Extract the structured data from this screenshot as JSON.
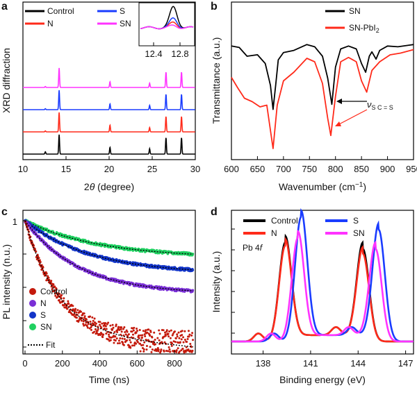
{
  "figure": {
    "panel_letters": [
      "a",
      "b",
      "c",
      "d"
    ]
  },
  "chart_data": [
    {
      "type": "line",
      "panel": "a",
      "xlabel_prefix": "2",
      "xlabel_symbol": "θ",
      "xlabel_suffix": " (degree)",
      "ylabel": "XRD diffraction",
      "xlim": [
        10,
        30
      ],
      "xticks": [
        "10",
        "15",
        "20",
        "25",
        "30"
      ],
      "peaks": [
        12.6,
        14.2,
        20.1,
        24.7,
        26.6,
        28.4
      ],
      "series": [
        {
          "name": "Control",
          "color": "#000000",
          "offset": 0,
          "heights": [
            0.12,
            1.0,
            0.35,
            0.28,
            0.85,
            0.85
          ]
        },
        {
          "name": "N",
          "color": "#ff2a1a",
          "offset": 1,
          "heights": [
            0.05,
            1.0,
            0.35,
            0.22,
            0.8,
            0.8
          ]
        },
        {
          "name": "S",
          "color": "#1a3cff",
          "offset": 2,
          "heights": [
            0.05,
            1.0,
            0.3,
            0.22,
            0.8,
            0.8
          ]
        },
        {
          "name": "SN",
          "color": "#ff33ff",
          "offset": 3,
          "heights": [
            0.05,
            1.0,
            0.3,
            0.22,
            0.8,
            0.8
          ]
        }
      ],
      "inset": {
        "xticks": [
          "12.4",
          "12.8"
        ],
        "xlim": [
          12.2,
          13.0
        ],
        "series_heights": {
          "Control": 1.0,
          "S": 0.45,
          "N": 0.25,
          "SN": 0.1
        }
      }
    },
    {
      "type": "line",
      "panel": "b",
      "xlabel": "Wavenumber (cm",
      "xlabel_sup": "−1",
      "xlabel_end": ")",
      "ylabel": "Transmittance (a.u.)",
      "xlim": [
        600,
        950
      ],
      "xticks": [
        "600",
        "650",
        "700",
        "750",
        "800",
        "850",
        "900",
        "950"
      ],
      "series": [
        {
          "name": "SN",
          "color": "#000000",
          "points": [
            [
              600,
              0.06
            ],
            [
              615,
              0.08
            ],
            [
              630,
              0.2
            ],
            [
              650,
              0.18
            ],
            [
              665,
              0.3
            ],
            [
              675,
              0.6
            ],
            [
              680,
              0.93
            ],
            [
              685,
              0.6
            ],
            [
              690,
              0.25
            ],
            [
              700,
              0.15
            ],
            [
              720,
              0.12
            ],
            [
              745,
              0.04
            ],
            [
              760,
              0.07
            ],
            [
              775,
              0.2
            ],
            [
              785,
              0.5
            ],
            [
              793,
              0.86
            ],
            [
              800,
              0.35
            ],
            [
              810,
              0.1
            ],
            [
              825,
              0.06
            ],
            [
              840,
              0.1
            ],
            [
              850,
              0.3
            ],
            [
              858,
              0.42
            ],
            [
              865,
              0.2
            ],
            [
              870,
              0.14
            ],
            [
              878,
              0.24
            ],
            [
              885,
              0.12
            ],
            [
              900,
              0.06
            ],
            [
              920,
              0.07
            ],
            [
              940,
              0.05
            ],
            [
              950,
              0.04
            ]
          ]
        },
        {
          "name": "SN-PbI",
          "name_sub": "2",
          "color": "#ff2a1a",
          "points": [
            [
              600,
              0.38
            ],
            [
              612,
              0.5
            ],
            [
              625,
              0.62
            ],
            [
              640,
              0.66
            ],
            [
              655,
              0.72
            ],
            [
              668,
              0.7
            ],
            [
              680,
              1.2
            ],
            [
              688,
              0.7
            ],
            [
              700,
              0.42
            ],
            [
              720,
              0.32
            ],
            [
              745,
              0.16
            ],
            [
              760,
              0.2
            ],
            [
              775,
              0.45
            ],
            [
              785,
              0.85
            ],
            [
              791,
              1.05
            ],
            [
              800,
              0.6
            ],
            [
              810,
              0.2
            ],
            [
              825,
              0.15
            ],
            [
              840,
              0.2
            ],
            [
              850,
              0.42
            ],
            [
              860,
              0.55
            ],
            [
              870,
              0.3
            ],
            [
              885,
              0.2
            ],
            [
              905,
              0.12
            ],
            [
              925,
              0.1
            ],
            [
              950,
              0.06
            ]
          ]
        }
      ],
      "annotation": {
        "symbol": "ν",
        "sub": "S C = S"
      }
    },
    {
      "type": "scatter",
      "panel": "c",
      "xlabel": "Time (ns)",
      "ylabel": "PL intensity (n.u.)",
      "xlim": [
        0,
        900
      ],
      "yscale": "log",
      "xticks": [
        "0",
        "200",
        "400",
        "600",
        "800"
      ],
      "yticks": [
        "1"
      ],
      "series": [
        {
          "name": "Control",
          "color": "#c41a0c",
          "amplitude_fraction": 0.85,
          "decay_ns": 320
        },
        {
          "name": "N",
          "color": "#7a2fd6",
          "amplitude_fraction": 0.55,
          "decay_ns": 520
        },
        {
          "name": "S",
          "color": "#1234c8",
          "amplitude_fraction": 0.4,
          "decay_ns": 640
        },
        {
          "name": "SN",
          "color": "#1fd060",
          "amplitude_fraction": 0.28,
          "decay_ns": 720
        }
      ],
      "fit_label": "Fit"
    },
    {
      "type": "line",
      "panel": "d",
      "xlabel": "Binding energy (eV)",
      "ylabel": "Intensity (a.u.)",
      "xlim": [
        136,
        147.5
      ],
      "xticks": [
        "138",
        "141",
        "144",
        "147"
      ],
      "annotation_text": "Pb 4",
      "annotation_italic": "f",
      "series": [
        {
          "name": "Control",
          "color": "#000000",
          "peak1": 139.4,
          "peak2": 144.3,
          "h1": 0.62,
          "h2": 0.58
        },
        {
          "name": "N",
          "color": "#ff2a1a",
          "peak1": 139.4,
          "peak2": 144.3,
          "h1": 0.6,
          "h2": 0.55
        },
        {
          "name": "S",
          "color": "#1a3cff",
          "peak1": 140.4,
          "peak2": 145.3,
          "h1": 0.78,
          "h2": 0.7
        },
        {
          "name": "SN",
          "color": "#ff33ff",
          "peak1": 140.2,
          "peak2": 145.1,
          "h1": 0.65,
          "h2": 0.58
        }
      ]
    }
  ]
}
